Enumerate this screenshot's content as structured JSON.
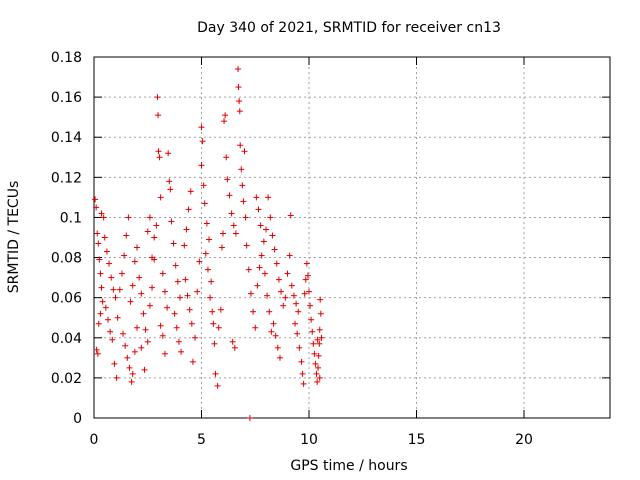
{
  "chart_data": {
    "type": "scatter",
    "title": "Day 340 of 2021, SRMTID for receiver cn13",
    "xlabel": "GPS time / hours",
    "ylabel": "SRMTID / TECUs",
    "xlim": [
      0,
      24
    ],
    "ylim": [
      0,
      0.18
    ],
    "xticks": [
      "0",
      "5",
      "10",
      "15",
      "20"
    ],
    "xtick_values": [
      0,
      5,
      10,
      15,
      20
    ],
    "yticks": [
      "0",
      "0.02",
      "0.04",
      "0.06",
      "0.08",
      "0.1",
      "0.12",
      "0.14",
      "0.16",
      "0.18"
    ],
    "ytick_values": [
      0,
      0.02,
      0.04,
      0.06,
      0.08,
      0.1,
      0.12,
      0.14,
      0.16,
      0.18
    ],
    "grid": true,
    "marker": "+",
    "color": "#e00000",
    "series": [
      {
        "name": "SRMTID",
        "points": [
          [
            0.05,
            0.109
          ],
          [
            0.1,
            0.105
          ],
          [
            0.15,
            0.092
          ],
          [
            0.2,
            0.087
          ],
          [
            0.25,
            0.079
          ],
          [
            0.3,
            0.072
          ],
          [
            0.35,
            0.065
          ],
          [
            0.4,
            0.058
          ],
          [
            0.12,
            0.034
          ],
          [
            0.18,
            0.032
          ],
          [
            0.22,
            0.047
          ],
          [
            0.3,
            0.052
          ],
          [
            0.35,
            0.102
          ],
          [
            0.45,
            0.1
          ],
          [
            0.5,
            0.09
          ],
          [
            0.6,
            0.083
          ],
          [
            0.7,
            0.077
          ],
          [
            0.8,
            0.07
          ],
          [
            0.9,
            0.064
          ],
          [
            1.0,
            0.06
          ],
          [
            0.55,
            0.055
          ],
          [
            0.65,
            0.049
          ],
          [
            0.75,
            0.043
          ],
          [
            0.85,
            0.039
          ],
          [
            0.95,
            0.027
          ],
          [
            1.05,
            0.02
          ],
          [
            1.1,
            0.05
          ],
          [
            1.2,
            0.064
          ],
          [
            1.3,
            0.072
          ],
          [
            1.4,
            0.081
          ],
          [
            1.5,
            0.091
          ],
          [
            1.6,
            0.1
          ],
          [
            1.35,
            0.042
          ],
          [
            1.45,
            0.036
          ],
          [
            1.55,
            0.03
          ],
          [
            1.65,
            0.025
          ],
          [
            1.75,
            0.018
          ],
          [
            1.8,
            0.022
          ],
          [
            1.9,
            0.033
          ],
          [
            2.0,
            0.045
          ],
          [
            1.7,
            0.058
          ],
          [
            1.8,
            0.066
          ],
          [
            1.9,
            0.078
          ],
          [
            2.0,
            0.085
          ],
          [
            2.1,
            0.07
          ],
          [
            2.2,
            0.062
          ],
          [
            2.3,
            0.052
          ],
          [
            2.4,
            0.044
          ],
          [
            2.2,
            0.035
          ],
          [
            2.35,
            0.024
          ],
          [
            2.5,
            0.038
          ],
          [
            2.6,
            0.056
          ],
          [
            2.7,
            0.065
          ],
          [
            2.8,
            0.079
          ],
          [
            2.5,
            0.093
          ],
          [
            2.6,
            0.1
          ],
          [
            2.7,
            0.08
          ],
          [
            2.8,
            0.09
          ],
          [
            2.9,
            0.096
          ],
          [
            2.95,
            0.16
          ],
          [
            2.98,
            0.151
          ],
          [
            3.0,
            0.133
          ],
          [
            3.05,
            0.13
          ],
          [
            3.1,
            0.11
          ],
          [
            3.2,
            0.072
          ],
          [
            3.3,
            0.063
          ],
          [
            3.4,
            0.055
          ],
          [
            3.1,
            0.046
          ],
          [
            3.2,
            0.041
          ],
          [
            3.3,
            0.032
          ],
          [
            3.5,
            0.118
          ],
          [
            3.55,
            0.114
          ],
          [
            3.45,
            0.132
          ],
          [
            3.6,
            0.098
          ],
          [
            3.7,
            0.087
          ],
          [
            3.8,
            0.076
          ],
          [
            3.9,
            0.068
          ],
          [
            4.0,
            0.06
          ],
          [
            3.75,
            0.052
          ],
          [
            3.85,
            0.045
          ],
          [
            3.95,
            0.038
          ],
          [
            4.05,
            0.033
          ],
          [
            4.2,
            0.086
          ],
          [
            4.3,
            0.094
          ],
          [
            4.4,
            0.104
          ],
          [
            4.5,
            0.113
          ],
          [
            4.25,
            0.069
          ],
          [
            4.35,
            0.061
          ],
          [
            4.45,
            0.054
          ],
          [
            4.55,
            0.047
          ],
          [
            4.6,
            0.028
          ],
          [
            4.7,
            0.04
          ],
          [
            4.8,
            0.063
          ],
          [
            4.9,
            0.078
          ],
          [
            5.0,
            0.145
          ],
          [
            5.05,
            0.138
          ],
          [
            5.0,
            0.126
          ],
          [
            5.1,
            0.116
          ],
          [
            5.15,
            0.107
          ],
          [
            5.25,
            0.097
          ],
          [
            5.35,
            0.089
          ],
          [
            5.2,
            0.082
          ],
          [
            5.3,
            0.074
          ],
          [
            5.45,
            0.068
          ],
          [
            5.4,
            0.06
          ],
          [
            5.5,
            0.053
          ],
          [
            5.55,
            0.047
          ],
          [
            5.6,
            0.037
          ],
          [
            5.65,
            0.022
          ],
          [
            5.75,
            0.016
          ],
          [
            5.8,
            0.045
          ],
          [
            5.9,
            0.054
          ],
          [
            5.95,
            0.085
          ],
          [
            6.0,
            0.092
          ],
          [
            6.05,
            0.148
          ],
          [
            6.1,
            0.151
          ],
          [
            6.15,
            0.13
          ],
          [
            6.2,
            0.119
          ],
          [
            6.3,
            0.111
          ],
          [
            6.4,
            0.102
          ],
          [
            6.5,
            0.096
          ],
          [
            6.6,
            0.092
          ],
          [
            6.45,
            0.038
          ],
          [
            6.55,
            0.035
          ],
          [
            6.7,
            0.174
          ],
          [
            6.72,
            0.165
          ],
          [
            6.75,
            0.158
          ],
          [
            6.78,
            0.153
          ],
          [
            6.8,
            0.136
          ],
          [
            6.85,
            0.124
          ],
          [
            6.9,
            0.116
          ],
          [
            6.95,
            0.108
          ],
          [
            7.0,
            0.133
          ],
          [
            7.05,
            0.1
          ],
          [
            7.1,
            0.086
          ],
          [
            7.2,
            0.074
          ],
          [
            7.3,
            0.062
          ],
          [
            7.4,
            0.053
          ],
          [
            7.5,
            0.045
          ],
          [
            7.6,
            0.066
          ],
          [
            7.7,
            0.075
          ],
          [
            7.8,
            0.081
          ],
          [
            7.9,
            0.088
          ],
          [
            8.0,
            0.094
          ],
          [
            7.95,
            0.072
          ],
          [
            8.05,
            0.061
          ],
          [
            8.15,
            0.053
          ],
          [
            8.25,
            0.043
          ],
          [
            7.55,
            0.11
          ],
          [
            7.65,
            0.104
          ],
          [
            7.75,
            0.096
          ],
          [
            7.25,
            0.0
          ],
          [
            8.1,
            0.11
          ],
          [
            8.2,
            0.1
          ],
          [
            8.3,
            0.091
          ],
          [
            8.4,
            0.084
          ],
          [
            8.5,
            0.077
          ],
          [
            8.6,
            0.069
          ],
          [
            8.7,
            0.063
          ],
          [
            8.8,
            0.056
          ],
          [
            8.35,
            0.047
          ],
          [
            8.45,
            0.041
          ],
          [
            8.55,
            0.035
          ],
          [
            8.65,
            0.03
          ],
          [
            8.9,
            0.06
          ],
          [
            9.0,
            0.072
          ],
          [
            9.1,
            0.081
          ],
          [
            9.15,
            0.101
          ],
          [
            9.2,
            0.066
          ],
          [
            9.3,
            0.061
          ],
          [
            9.4,
            0.057
          ],
          [
            9.5,
            0.053
          ],
          [
            9.35,
            0.047
          ],
          [
            9.45,
            0.042
          ],
          [
            9.55,
            0.035
          ],
          [
            9.65,
            0.028
          ],
          [
            9.7,
            0.022
          ],
          [
            9.75,
            0.017
          ],
          [
            9.8,
            0.062
          ],
          [
            9.85,
            0.069
          ],
          [
            9.9,
            0.077
          ],
          [
            9.95,
            0.071
          ],
          [
            10.0,
            0.063
          ],
          [
            10.05,
            0.056
          ],
          [
            10.1,
            0.049
          ],
          [
            10.15,
            0.043
          ],
          [
            10.2,
            0.037
          ],
          [
            10.25,
            0.032
          ],
          [
            10.3,
            0.027
          ],
          [
            10.35,
            0.022
          ],
          [
            10.38,
            0.018
          ],
          [
            10.42,
            0.025
          ],
          [
            10.45,
            0.031
          ],
          [
            10.48,
            0.037
          ],
          [
            10.5,
            0.044
          ],
          [
            10.52,
            0.059
          ],
          [
            10.55,
            0.052
          ],
          [
            10.58,
            0.04
          ],
          [
            10.5,
            0.02
          ],
          [
            10.4,
            0.039
          ]
        ]
      }
    ]
  }
}
